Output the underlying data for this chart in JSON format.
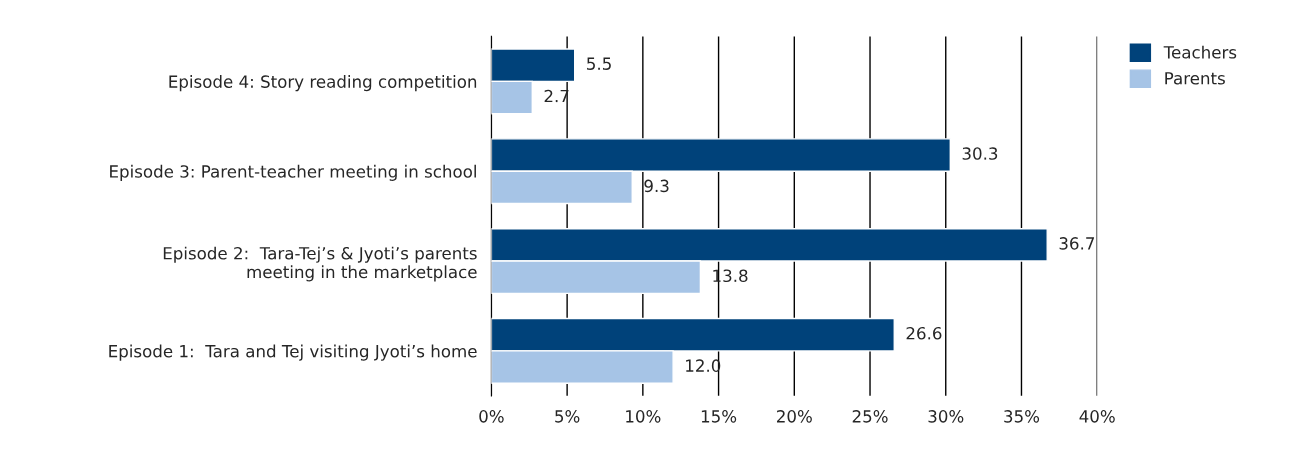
{
  "chart_data": {
    "type": "bar",
    "orientation": "horizontal",
    "categories": [
      "Episode 4: Story reading competition",
      "Episode 3: Parent-teacher meeting in school",
      "Episode 2:  Tara-Tej’s & Jyoti’s parents\nmeeting in the marketplace",
      "Episode 1:  Tara and Tej visiting Jyoti’s home"
    ],
    "series": [
      {
        "name": "Teachers",
        "color": "#00427a",
        "values": [
          5.5,
          30.3,
          36.7,
          26.6
        ],
        "value_labels": [
          "5.5",
          "30.3",
          "36.7",
          "26.6"
        ]
      },
      {
        "name": "Parents",
        "color": "#a6c4e6",
        "values": [
          2.7,
          9.3,
          13.8,
          12.0
        ],
        "value_labels": [
          "2.7",
          "9.3",
          "13.8",
          "12.0"
        ]
      }
    ],
    "xlim": [
      0,
      40
    ],
    "xticks": [
      {
        "value": 0,
        "label": "0%"
      },
      {
        "value": 5,
        "label": "5%"
      },
      {
        "value": 10,
        "label": "10%"
      },
      {
        "value": 15,
        "label": "15%"
      },
      {
        "value": 20,
        "label": "20%"
      },
      {
        "value": 25,
        "label": "25%"
      },
      {
        "value": 30,
        "label": "30%"
      },
      {
        "value": 35,
        "label": "35%"
      },
      {
        "value": 40,
        "label": "40%"
      }
    ],
    "grid": "x",
    "legend": "top right"
  }
}
